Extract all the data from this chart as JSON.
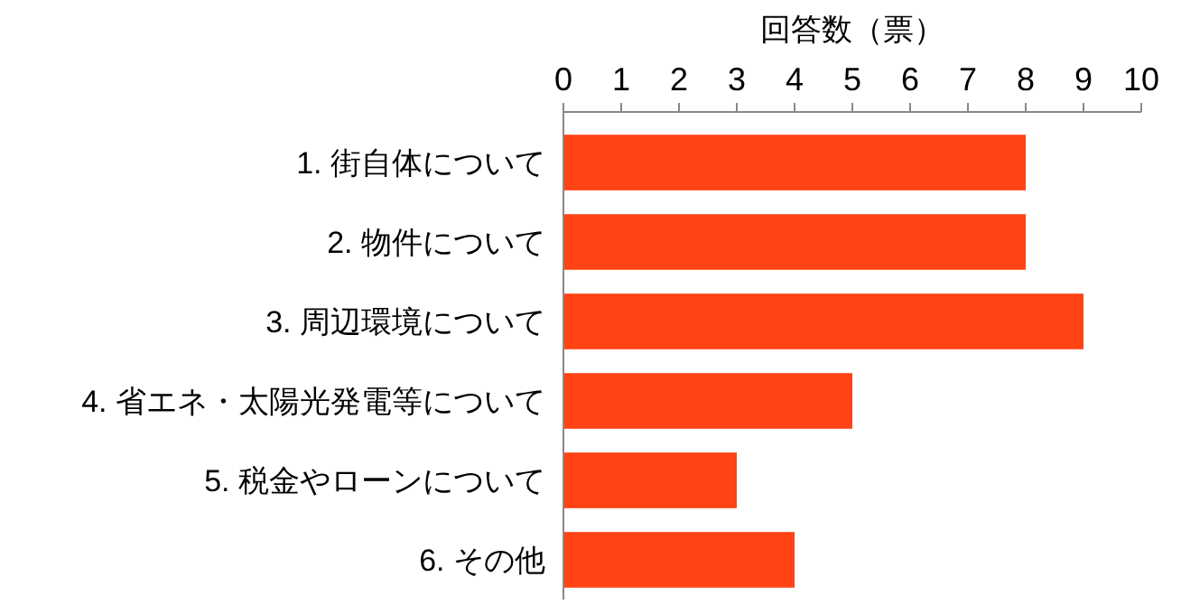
{
  "chart_data": {
    "type": "bar",
    "orientation": "horizontal",
    "xlabel": "回答数（票）",
    "categories": [
      "1.  街自体について",
      "2.  物件について",
      "3.  周辺環境について",
      "4.  省エネ・太陽光発電等について",
      "5.  税金やローンについて",
      "6.  その他"
    ],
    "values": [
      8,
      8,
      9,
      5,
      3,
      4
    ],
    "color": "#ff4314",
    "xlim": [
      0,
      10
    ],
    "xticks": [
      0,
      1,
      2,
      3,
      4,
      5,
      6,
      7,
      8,
      9,
      10
    ],
    "grid": false
  }
}
